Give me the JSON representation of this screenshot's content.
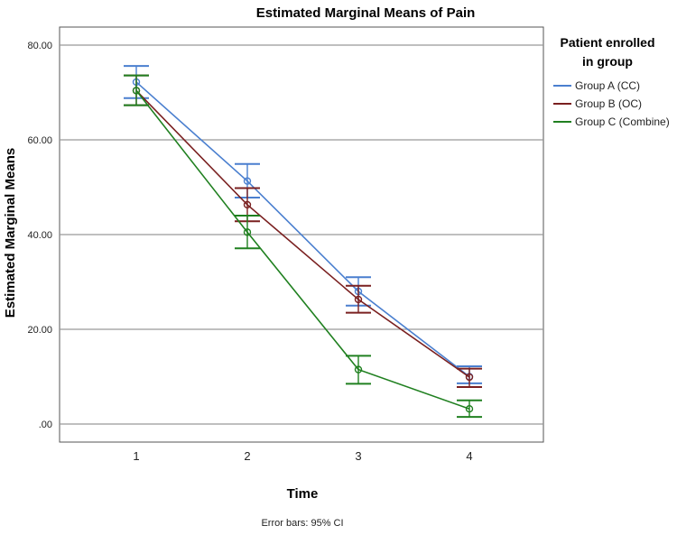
{
  "chart_data": {
    "type": "line",
    "title": "Estimated Marginal Means of Pain",
    "xlabel": "Time",
    "ylabel": "Estimated Marginal Means",
    "categories": [
      "1",
      "2",
      "3",
      "4"
    ],
    "y_ticks": [
      ".00",
      "20.00",
      "40.00",
      "60.00",
      "80.00"
    ],
    "y_tick_values": [
      0,
      20,
      40,
      60,
      80
    ],
    "ylim": [
      -3,
      85
    ],
    "grid": true,
    "legend_title_lines": [
      "Patient enrolled",
      "in group"
    ],
    "legend_position": "top-right",
    "footnote": "Error bars: 95% CI",
    "series": [
      {
        "name": "Group A (CC)",
        "color": "#4a7fcf",
        "values": [
          72.2,
          51.3,
          28.0,
          10.0
        ],
        "ci_low": [
          68.8,
          47.8,
          25.0,
          8.6
        ],
        "ci_high": [
          75.6,
          54.9,
          31.0,
          12.2
        ]
      },
      {
        "name": "Group B (OC)",
        "color": "#7a2020",
        "values": [
          70.4,
          46.3,
          26.3,
          9.9
        ],
        "ci_low": [
          67.3,
          42.8,
          23.5,
          7.8
        ],
        "ci_high": [
          73.6,
          49.8,
          29.2,
          11.7
        ]
      },
      {
        "name": "Group C (Combine)",
        "color": "#208020",
        "values": [
          70.4,
          40.5,
          11.5,
          3.2
        ],
        "ci_low": [
          67.3,
          37.1,
          8.5,
          1.5
        ],
        "ci_high": [
          73.6,
          44.0,
          14.4,
          5.0
        ]
      }
    ]
  }
}
